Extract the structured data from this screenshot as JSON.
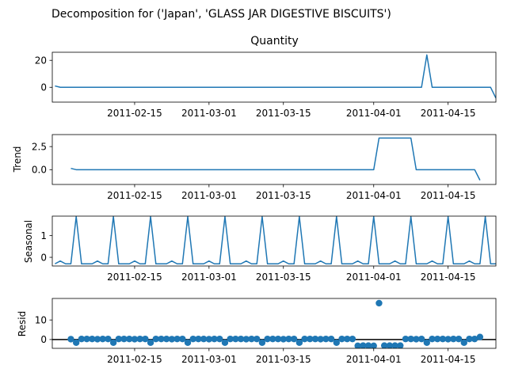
{
  "figure_title": "Decomposition for ('Japan', 'GLASS JAR DIGESTIVE BISCUITS')",
  "colors": {
    "line": "#1f77b4",
    "axis": "#000000",
    "background": "#ffffff"
  },
  "chart_data": [
    {
      "type": "line",
      "title": "Quantity",
      "ylabel": "",
      "x_dates": [
        "2011-01-31",
        "2011-04-24"
      ],
      "xlim_days": [
        -0.5,
        83
      ],
      "xticks": [
        "2011-02-15",
        "2011-03-01",
        "2011-03-15",
        "2011-04-01",
        "2011-04-15"
      ],
      "yticks": [
        0,
        20
      ],
      "ylim": [
        -11,
        26
      ],
      "grid": false,
      "x_days": [
        0,
        1,
        2,
        3,
        4,
        5,
        6,
        7,
        8,
        9,
        10,
        11,
        12,
        13,
        14,
        15,
        16,
        17,
        18,
        19,
        20,
        21,
        22,
        23,
        24,
        25,
        26,
        27,
        28,
        29,
        30,
        31,
        32,
        33,
        34,
        35,
        36,
        37,
        38,
        39,
        40,
        41,
        42,
        43,
        44,
        45,
        46,
        47,
        48,
        49,
        50,
        51,
        52,
        53,
        54,
        55,
        56,
        57,
        58,
        59,
        60,
        61,
        62,
        63,
        64,
        65,
        66,
        67,
        68,
        69,
        70,
        71,
        72,
        73,
        74,
        75,
        76,
        77,
        78,
        79,
        80,
        81,
        82,
        83
      ],
      "values": [
        1,
        0,
        0,
        0,
        0,
        0,
        0,
        0,
        0,
        0,
        0,
        0,
        0,
        0,
        0,
        0,
        0,
        0,
        0,
        0,
        0,
        0,
        0,
        0,
        0,
        0,
        0,
        0,
        0,
        0,
        0,
        0,
        0,
        0,
        0,
        0,
        0,
        0,
        0,
        0,
        0,
        0,
        0,
        0,
        0,
        0,
        0,
        0,
        0,
        0,
        0,
        0,
        0,
        0,
        0,
        0,
        0,
        0,
        0,
        0,
        0,
        0,
        0,
        0,
        0,
        0,
        0,
        0,
        0,
        0,
        24,
        0,
        0,
        0,
        0,
        0,
        0,
        0,
        0,
        0,
        0,
        0,
        0,
        -8
      ]
    },
    {
      "type": "line",
      "title": "",
      "ylabel": "Trend",
      "x_dates": [
        "2011-01-31",
        "2011-04-24"
      ],
      "xlim_days": [
        -0.5,
        83
      ],
      "xticks": [
        "2011-02-15",
        "2011-03-01",
        "2011-03-15",
        "2011-04-01",
        "2011-04-15"
      ],
      "yticks": [
        "0.0",
        "2.5"
      ],
      "ylim": [
        -1.6,
        3.8
      ],
      "grid": false,
      "x_days": [
        3,
        4,
        5,
        6,
        7,
        8,
        9,
        10,
        11,
        12,
        13,
        14,
        15,
        16,
        17,
        18,
        19,
        20,
        21,
        22,
        23,
        24,
        25,
        26,
        27,
        28,
        29,
        30,
        31,
        32,
        33,
        34,
        35,
        36,
        37,
        38,
        39,
        40,
        41,
        42,
        43,
        44,
        45,
        46,
        47,
        48,
        49,
        50,
        51,
        52,
        53,
        54,
        55,
        56,
        57,
        58,
        59,
        60,
        61,
        62,
        63,
        64,
        65,
        66,
        67,
        68,
        69,
        70,
        71,
        72,
        73,
        74,
        75,
        76,
        77,
        78,
        79,
        80
      ],
      "values": [
        0.14,
        0,
        0,
        0,
        0,
        0,
        0,
        0,
        0,
        0,
        0,
        0,
        0,
        0,
        0,
        0,
        0,
        0,
        0,
        0,
        0,
        0,
        0,
        0,
        0,
        0,
        0,
        0,
        0,
        0,
        0,
        0,
        0,
        0,
        0,
        0,
        0,
        0,
        0,
        0,
        0,
        0,
        0,
        0,
        0,
        0,
        0,
        0,
        0,
        0,
        0,
        0,
        0,
        0,
        0,
        0,
        0,
        0,
        3.43,
        3.43,
        3.43,
        3.43,
        3.43,
        3.43,
        3.43,
        0,
        0,
        0,
        0,
        0,
        0,
        0,
        0,
        0,
        0,
        0,
        0,
        -1.14
      ]
    },
    {
      "type": "line",
      "title": "",
      "ylabel": "Seasonal",
      "x_dates": [
        "2011-01-31",
        "2011-04-24"
      ],
      "xlim_days": [
        -0.5,
        83
      ],
      "xticks": [
        "2011-02-15",
        "2011-03-01",
        "2011-03-15",
        "2011-04-01",
        "2011-04-15"
      ],
      "yticks": [
        0,
        1
      ],
      "ylim": [
        -0.4,
        1.9
      ],
      "grid": false,
      "x_days": [
        0,
        1,
        2,
        3,
        4,
        5,
        6,
        7,
        8,
        9,
        10,
        11,
        12,
        13,
        14,
        15,
        16,
        17,
        18,
        19,
        20,
        21,
        22,
        23,
        24,
        25,
        26,
        27,
        28,
        29,
        30,
        31,
        32,
        33,
        34,
        35,
        36,
        37,
        38,
        39,
        40,
        41,
        42,
        43,
        44,
        45,
        46,
        47,
        48,
        49,
        50,
        51,
        52,
        53,
        54,
        55,
        56,
        57,
        58,
        59,
        60,
        61,
        62,
        63,
        64,
        65,
        66,
        67,
        68,
        69,
        70,
        71,
        72,
        73,
        74,
        75,
        76,
        77,
        78,
        79,
        80,
        81,
        82,
        83
      ],
      "values": [
        -0.3,
        -0.17,
        -0.3,
        -0.3,
        1.88,
        -0.3,
        -0.3,
        -0.3,
        -0.17,
        -0.3,
        -0.3,
        1.88,
        -0.3,
        -0.3,
        -0.3,
        -0.17,
        -0.3,
        -0.3,
        1.88,
        -0.3,
        -0.3,
        -0.3,
        -0.17,
        -0.3,
        -0.3,
        1.88,
        -0.3,
        -0.3,
        -0.3,
        -0.17,
        -0.3,
        -0.3,
        1.88,
        -0.3,
        -0.3,
        -0.3,
        -0.17,
        -0.3,
        -0.3,
        1.88,
        -0.3,
        -0.3,
        -0.3,
        -0.17,
        -0.3,
        -0.3,
        1.88,
        -0.3,
        -0.3,
        -0.3,
        -0.17,
        -0.3,
        -0.3,
        1.88,
        -0.3,
        -0.3,
        -0.3,
        -0.17,
        -0.3,
        -0.3,
        1.88,
        -0.3,
        -0.3,
        -0.3,
        -0.17,
        -0.3,
        -0.3,
        1.88,
        -0.3,
        -0.3,
        -0.3,
        -0.17,
        -0.3,
        -0.3,
        1.88,
        -0.3,
        -0.3,
        -0.3,
        -0.17,
        -0.3,
        -0.3,
        1.88,
        -0.3,
        -0.3
      ]
    },
    {
      "type": "scatter",
      "title": "",
      "ylabel": "Resid",
      "x_dates": [
        "2011-01-31",
        "2011-04-24"
      ],
      "xlim_days": [
        -0.5,
        83
      ],
      "xticks": [
        "2011-02-15",
        "2011-03-01",
        "2011-03-15",
        "2011-04-01",
        "2011-04-15"
      ],
      "yticks": [
        0,
        10
      ],
      "ylim": [
        -4.5,
        21
      ],
      "grid": false,
      "baseline": 0,
      "x_days": [
        3,
        4,
        5,
        6,
        7,
        8,
        9,
        10,
        11,
        12,
        13,
        14,
        15,
        16,
        17,
        18,
        19,
        20,
        21,
        22,
        23,
        24,
        25,
        26,
        27,
        28,
        29,
        30,
        31,
        32,
        33,
        34,
        35,
        36,
        37,
        38,
        39,
        40,
        41,
        42,
        43,
        44,
        45,
        46,
        47,
        48,
        49,
        50,
        51,
        52,
        53,
        54,
        55,
        56,
        57,
        58,
        59,
        60,
        61,
        62,
        63,
        64,
        65,
        66,
        67,
        68,
        69,
        70,
        71,
        72,
        73,
        74,
        75,
        76,
        77,
        78,
        79,
        80
      ],
      "values": [
        0.2,
        -1.6,
        0.3,
        0.3,
        0.3,
        0.2,
        0.3,
        0.3,
        -1.6,
        0.3,
        0.3,
        0.3,
        0.2,
        0.3,
        0.3,
        -1.6,
        0.3,
        0.3,
        0.3,
        0.2,
        0.3,
        0.3,
        -1.6,
        0.3,
        0.3,
        0.3,
        0.2,
        0.3,
        0.3,
        -1.6,
        0.3,
        0.3,
        0.3,
        0.2,
        0.3,
        0.3,
        -1.6,
        0.3,
        0.3,
        0.3,
        0.2,
        0.3,
        0.3,
        -1.6,
        0.3,
        0.3,
        0.3,
        0.2,
        0.3,
        0.3,
        -1.6,
        0.3,
        0.3,
        0.3,
        -3.2,
        -3.1,
        -3.1,
        -3.2,
        18.6,
        -3.1,
        -3.1,
        -3.1,
        -3.1,
        0.3,
        0.3,
        0.2,
        0.3,
        -1.6,
        0.3,
        0.3,
        0.3,
        0.2,
        0.3,
        0.3,
        -1.6,
        0.3,
        0.3,
        1.3
      ]
    }
  ]
}
